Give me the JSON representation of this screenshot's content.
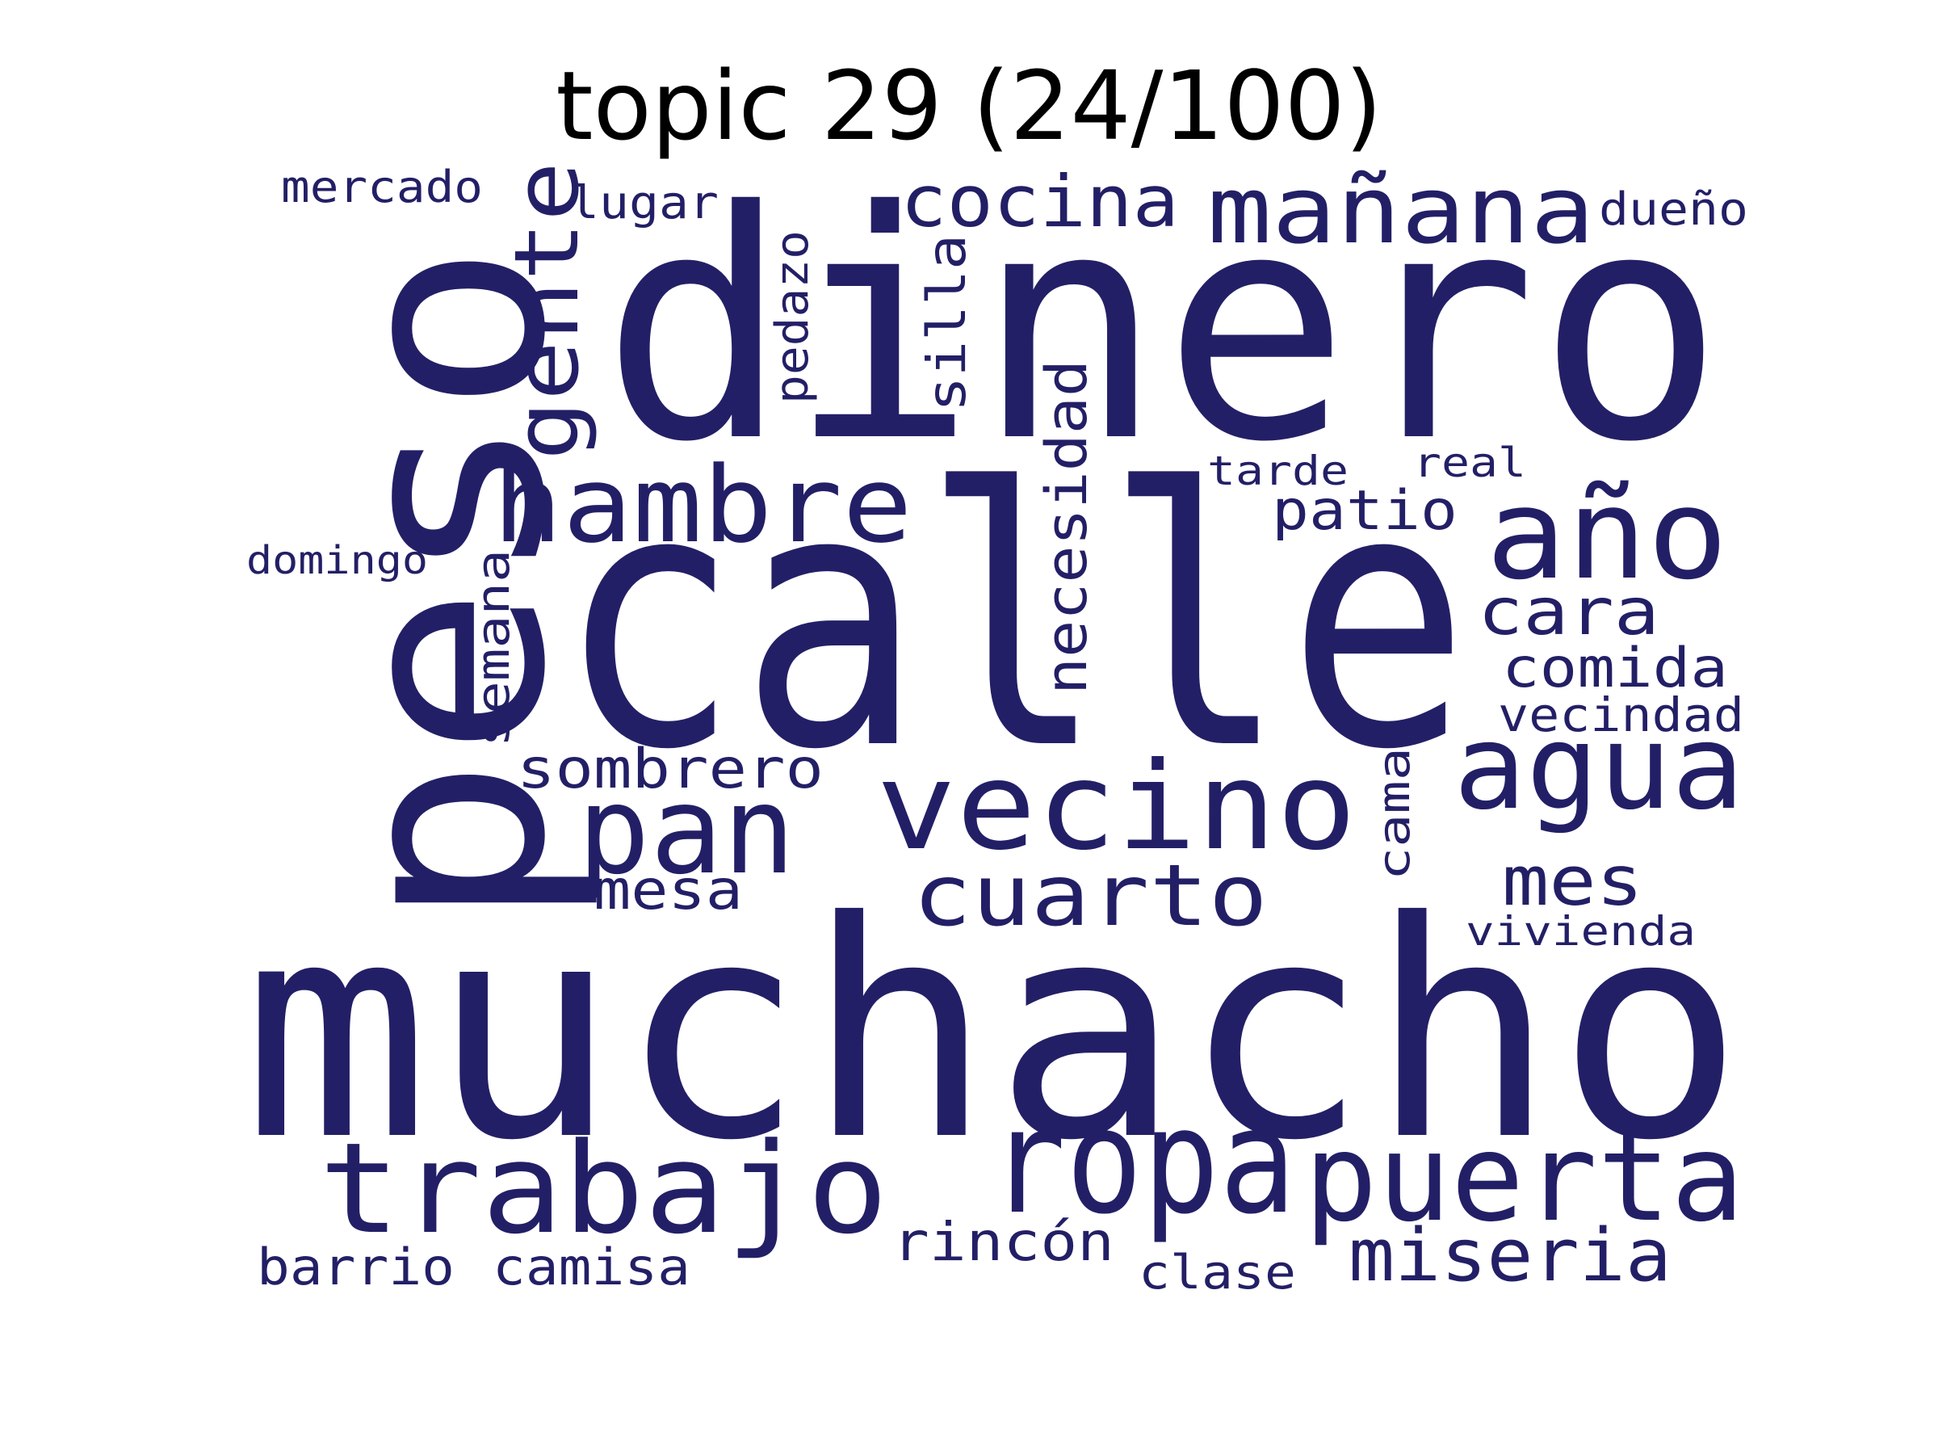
{
  "title": "topic 29 (24/100)",
  "word_color": "#231f66",
  "words": [
    {
      "text": "dinero"
    },
    {
      "text": "calle"
    },
    {
      "text": "muchacho"
    },
    {
      "text": "peso"
    },
    {
      "text": "ropa"
    },
    {
      "text": "puerta"
    },
    {
      "text": "trabajo"
    },
    {
      "text": "vecino"
    },
    {
      "text": "hambre"
    },
    {
      "text": "año"
    },
    {
      "text": "agua"
    },
    {
      "text": "pan"
    },
    {
      "text": "mañana"
    },
    {
      "text": "cuarto"
    },
    {
      "text": "gente"
    },
    {
      "text": "cocina"
    },
    {
      "text": "miseria"
    },
    {
      "text": "mes"
    },
    {
      "text": "cara"
    },
    {
      "text": "comida"
    },
    {
      "text": "sombrero"
    },
    {
      "text": "necesidad"
    },
    {
      "text": "patio"
    },
    {
      "text": "mesa"
    },
    {
      "text": "silla"
    },
    {
      "text": "rincón"
    },
    {
      "text": "vecindad"
    },
    {
      "text": "camisa"
    },
    {
      "text": "barrio"
    },
    {
      "text": "pedazo"
    },
    {
      "text": "lugar"
    },
    {
      "text": "semana"
    },
    {
      "text": "clase"
    },
    {
      "text": "dueño"
    },
    {
      "text": "mercado"
    },
    {
      "text": "vivienda"
    },
    {
      "text": "tarde"
    },
    {
      "text": "real"
    },
    {
      "text": "cama"
    },
    {
      "text": "domingo"
    }
  ]
}
